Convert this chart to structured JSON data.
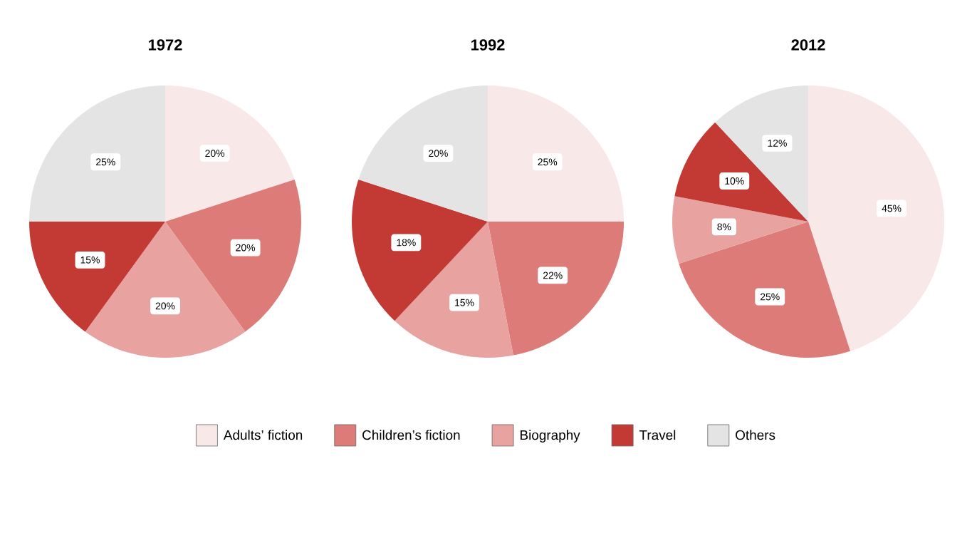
{
  "chart_data": [
    {
      "type": "pie",
      "title": "1972",
      "categories": [
        null,
        null,
        null,
        null,
        null
      ],
      "values": [
        20,
        20,
        20,
        15,
        25
      ],
      "colors": [
        "#f8e8e8",
        "#dc7b78",
        "#e8a3a1",
        "#c33a34",
        "#e4e4e4"
      ],
      "value_labels": [
        "20%",
        "20%",
        "20%",
        "15%",
        "25%"
      ]
    },
    {
      "type": "pie",
      "title": "1992",
      "categories": [
        "Adults’ fiction",
        "Children’s fiction",
        "Biography",
        "Travel",
        "Others"
      ],
      "values": [
        25,
        22,
        15,
        18,
        20
      ],
      "colors": [
        "#f8e8e8",
        "#dc7b78",
        "#e8a3a1",
        "#c33a34",
        "#e4e4e4"
      ],
      "value_labels": [
        "25%",
        "22%",
        "15%",
        "18%",
        "20%"
      ],
      "legend": "bottom"
    },
    {
      "type": "pie",
      "title": "2012",
      "categories": [
        null,
        null,
        null,
        null,
        null
      ],
      "values": [
        45,
        25,
        8,
        10,
        12
      ],
      "colors": [
        "#f8e8e8",
        "#dc7b78",
        "#e8a3a1",
        "#c33a34",
        "#e4e4e4"
      ],
      "value_labels": [
        "45%",
        "25%",
        "8%",
        "10%",
        "12%"
      ]
    }
  ]
}
